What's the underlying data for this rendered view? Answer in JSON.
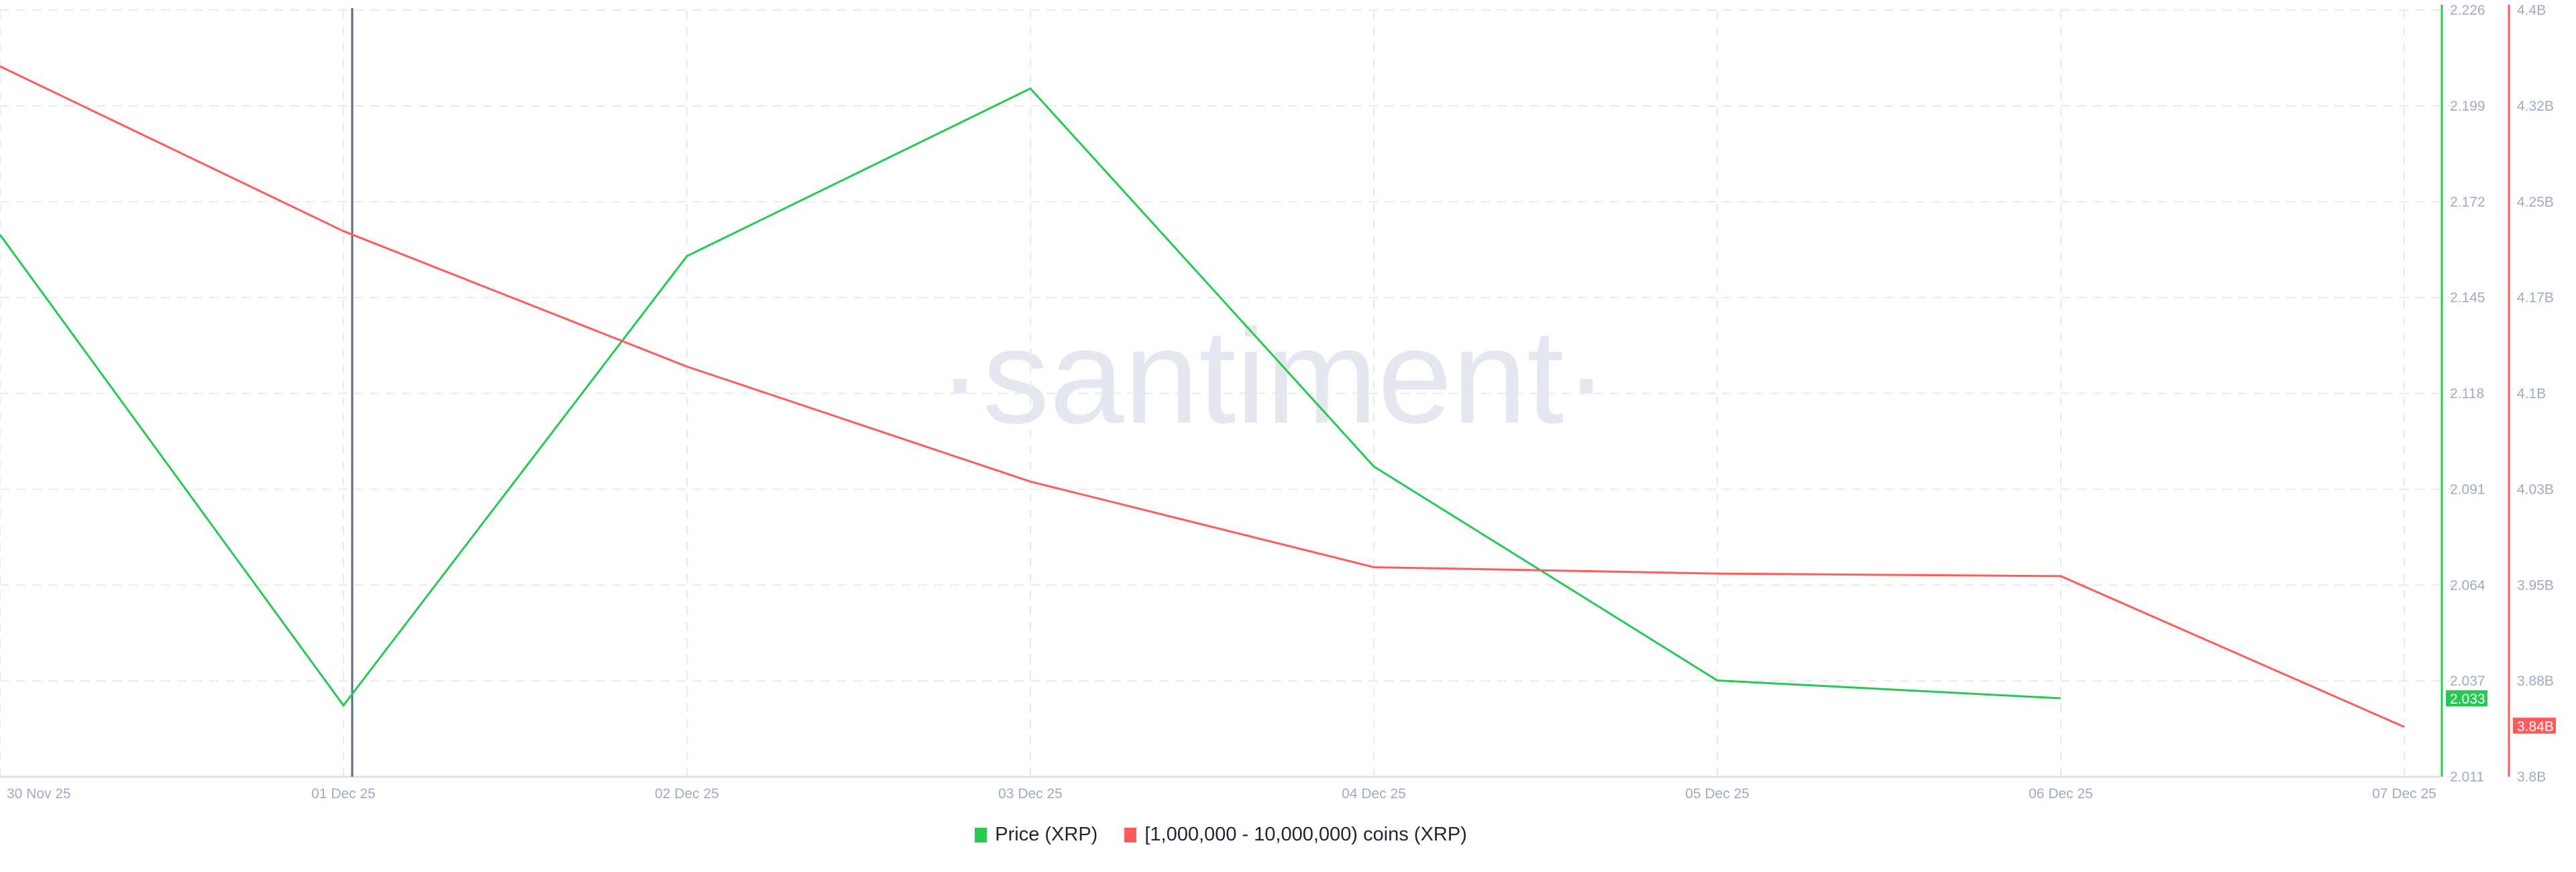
{
  "chart_data": {
    "type": "line",
    "watermark": "·santiment·",
    "x": [
      "30 Nov 25",
      "01 Dec 25",
      "02 Dec 25",
      "03 Dec 25",
      "04 Dec 25",
      "05 Dec 25",
      "06 Dec 25",
      "07 Dec 25"
    ],
    "series": [
      {
        "name": "Price (XRP)",
        "color": "#26c953",
        "axis": "left-right",
        "values": [
          2.163,
          2.031,
          2.157,
          2.204,
          2.098,
          2.038,
          2.033,
          null
        ],
        "current_label": "2.033"
      },
      {
        "name": "[1,000,000 - 10,000,000) coins (XRP)",
        "color": "#ff5b5b",
        "axis": "far-right",
        "values": [
          4.356,
          4.227,
          4.121,
          4.031,
          3.964,
          3.959,
          3.957,
          3.839
        ],
        "current_label": "3.84B"
      }
    ],
    "price_axis": {
      "range": [
        2.011,
        2.226
      ],
      "ticks": [
        "2.226",
        "2.199",
        "2.172",
        "2.145",
        "2.118",
        "2.091",
        "2.064",
        "2.037",
        "2.011"
      ]
    },
    "holdings_axis": {
      "range": [
        3.8,
        4.4
      ],
      "ticks": [
        "4.4B",
        "4.32B",
        "4.25B",
        "4.17B",
        "4.1B",
        "4.03B",
        "3.95B",
        "3.88B",
        "3.8B"
      ]
    },
    "crosshair_at": "01 Dec 25",
    "grid": true,
    "legend_position": "bottom"
  }
}
